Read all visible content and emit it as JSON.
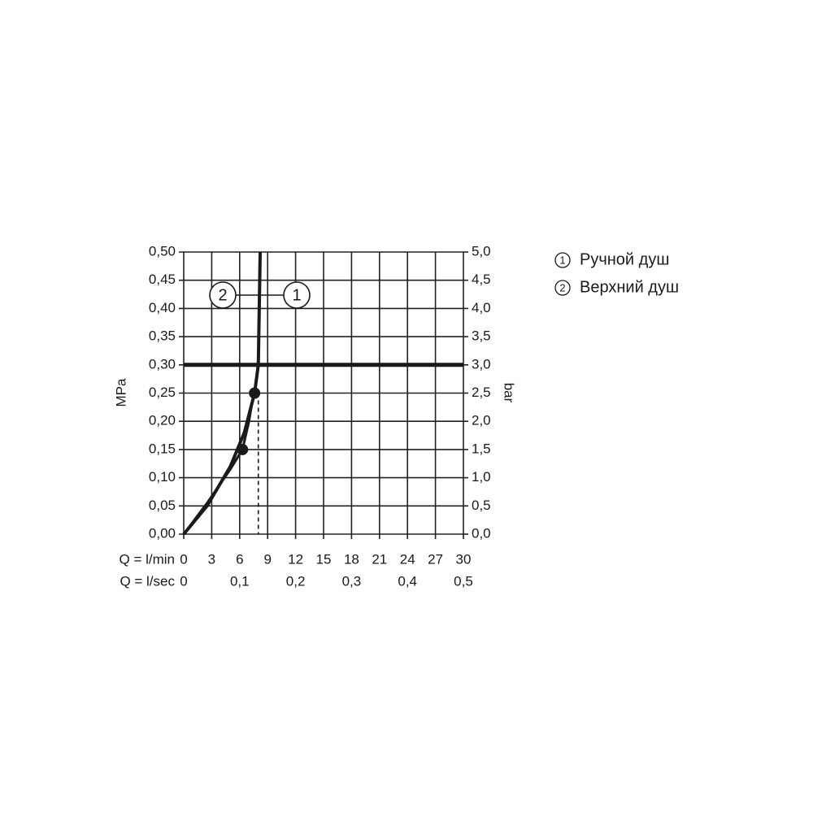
{
  "chart_data": {
    "type": "line",
    "x_label": "Q = l/min",
    "x2_label": "Q = l/sec",
    "y_label": "MPa",
    "y2_label": "bar",
    "xlim": [
      0,
      30
    ],
    "xticks": [
      0,
      3,
      6,
      9,
      12,
      15,
      18,
      21,
      24,
      27,
      30
    ],
    "x2lim": [
      0,
      0.5
    ],
    "x2ticks": [
      0,
      {
        "value": 0.1,
        "label": "0,1"
      },
      {
        "value": 0.2,
        "label": "0,2"
      },
      {
        "value": 0.3,
        "label": "0,3"
      },
      {
        "value": 0.4,
        "label": "0,4"
      },
      {
        "value": 0.5,
        "label": "0,5"
      }
    ],
    "ylim": [
      0,
      0.5
    ],
    "yticks": [
      {
        "value": 0,
        "label": "0,00"
      },
      {
        "value": 0.05,
        "label": "0,05"
      },
      {
        "value": 0.1,
        "label": "0,10"
      },
      {
        "value": 0.15,
        "label": "0,15"
      },
      {
        "value": 0.2,
        "label": "0,20"
      },
      {
        "value": 0.25,
        "label": "0,25"
      },
      {
        "value": 0.3,
        "label": "0,30"
      },
      {
        "value": 0.35,
        "label": "0,35"
      },
      {
        "value": 0.4,
        "label": "0,40"
      },
      {
        "value": 0.45,
        "label": "0,45"
      },
      {
        "value": 0.5,
        "label": "0,50"
      }
    ],
    "y2lim": [
      0,
      5
    ],
    "y2ticks": [
      {
        "value": 0,
        "label": "0,0"
      },
      {
        "value": 0.5,
        "label": "0,5"
      },
      {
        "value": 1,
        "label": "1,0"
      },
      {
        "value": 1.5,
        "label": "1,5"
      },
      {
        "value": 2,
        "label": "2,0"
      },
      {
        "value": 2.5,
        "label": "2,5"
      },
      {
        "value": 3,
        "label": "3,0"
      },
      {
        "value": 3.5,
        "label": "3,5"
      },
      {
        "value": 4,
        "label": "4,0"
      },
      {
        "value": 4.5,
        "label": "4,5"
      },
      {
        "value": 5,
        "label": "5,0"
      }
    ],
    "grid": true,
    "ref_x": 8,
    "ref_y": 0.3,
    "series": [
      {
        "name": "Ручной душ",
        "callout": "1",
        "color": "#1a1a1a",
        "x": [
          0,
          2.5,
          5,
          6.5,
          7.6,
          8,
          8.2
        ],
        "values": [
          0,
          0.05,
          0.12,
          0.18,
          0.25,
          0.3,
          0.5
        ],
        "point": [
          7.6,
          0.25
        ]
      },
      {
        "name": "Верхний душ",
        "callout": "2",
        "color": "#1a1a1a",
        "x": [
          0,
          2.5,
          5,
          6.3,
          7,
          7.5
        ],
        "values": [
          0,
          0.055,
          0.115,
          0.15,
          0.2,
          0.25
        ],
        "point": [
          6.3,
          0.15
        ]
      }
    ]
  }
}
